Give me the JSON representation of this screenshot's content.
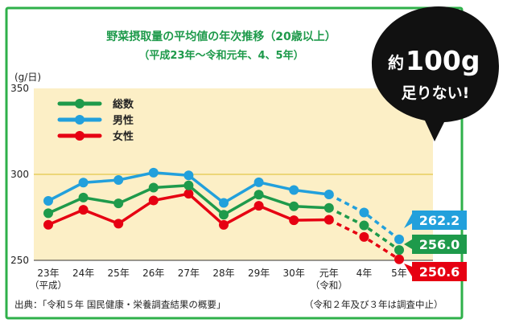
{
  "chart_data": {
    "type": "line",
    "title": "野菜摂取量の平均値の年次推移（20歳以上）",
    "subtitle": "（平成23年〜令和元年、4、5年）",
    "ylabel": "(g/日)",
    "ylim": [
      250,
      350
    ],
    "yticks": [
      "250",
      "300",
      "350"
    ],
    "categories": [
      "23年",
      "24年",
      "25年",
      "26年",
      "27年",
      "28年",
      "29年",
      "30年",
      "元年",
      "4年",
      "5年"
    ],
    "category_sublabels": [
      "（平成）",
      "",
      "",
      "",
      "",
      "",
      "",
      "",
      "（令和）",
      "",
      ""
    ],
    "dashed_after_index": 8,
    "series": [
      {
        "name": "総数",
        "color": "#1e9a4b",
        "values": [
          277.4,
          286.5,
          283.1,
          292.3,
          293.6,
          276.5,
          288.2,
          281.4,
          280.5,
          270.3,
          256.0
        ]
      },
      {
        "name": "男性",
        "color": "#22a0dc",
        "values": [
          284.6,
          295.2,
          296.7,
          301.0,
          299.4,
          283.4,
          295.4,
          290.9,
          288.3,
          277.8,
          262.2
        ]
      },
      {
        "name": "女性",
        "color": "#e60012",
        "values": [
          270.7,
          279.4,
          271.3,
          284.8,
          288.7,
          270.6,
          281.7,
          273.3,
          273.6,
          263.6,
          250.6
        ]
      }
    ],
    "end_labels": [
      "262.2",
      "256.0",
      "250.6"
    ],
    "legend_position": "top-left",
    "grid": "y-300",
    "source": "出典：「令和５年 国民健康・栄養調査結果の概要」",
    "note": "（令和２年及び３年は調査中止）"
  },
  "callout": {
    "prefix": "約",
    "amount": "100g",
    "line2": "足りない!"
  },
  "colors": {
    "frame": "#2fb04a",
    "plot_bg": "#fcefc6",
    "grid": "#e3c64a",
    "title": "#1e9a4b"
  }
}
